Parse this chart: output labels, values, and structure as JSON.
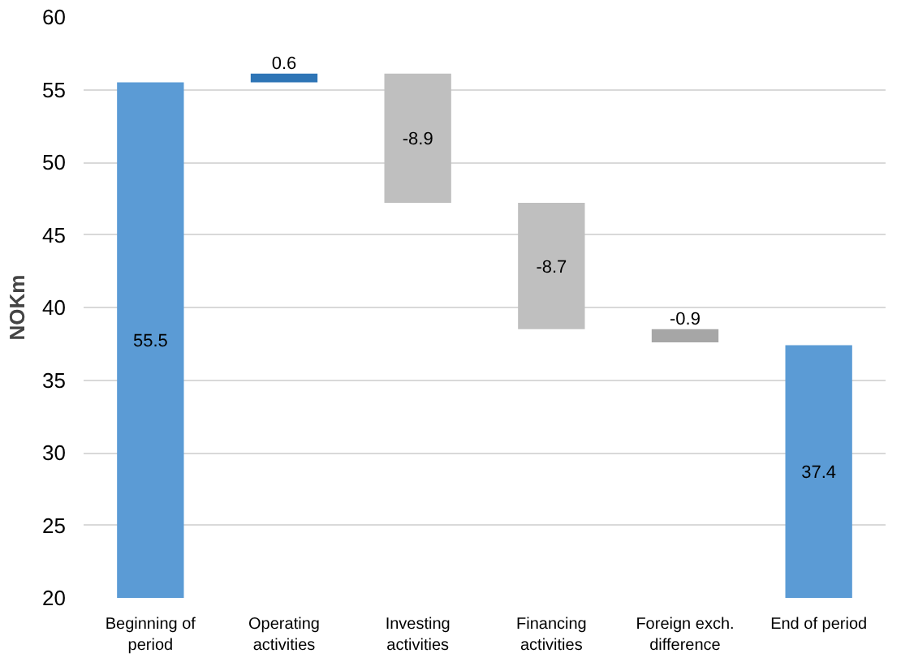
{
  "chart_data": {
    "type": "bar",
    "ylabel": "NOKm",
    "categories": [
      "Beginning of period",
      "Operating activities",
      "Investing activities",
      "Financing activities",
      "Foreign exch. difference",
      "End of period"
    ],
    "values": [
      55.5,
      0.6,
      -8.9,
      -8.7,
      -0.9,
      37.4
    ],
    "base": [
      0,
      55.5,
      56.1,
      47.2,
      38.5,
      0
    ],
    "colors": [
      "#5b9bd5",
      "#2e75b6",
      "#bfbfbf",
      "#bfbfbf",
      "#a6a6a6",
      "#5b9bd5"
    ],
    "ylim": [
      20,
      60
    ],
    "yticks": [
      20,
      25,
      30,
      35,
      40,
      45,
      50,
      55,
      60
    ],
    "grid": "y",
    "data_labels": true
  }
}
